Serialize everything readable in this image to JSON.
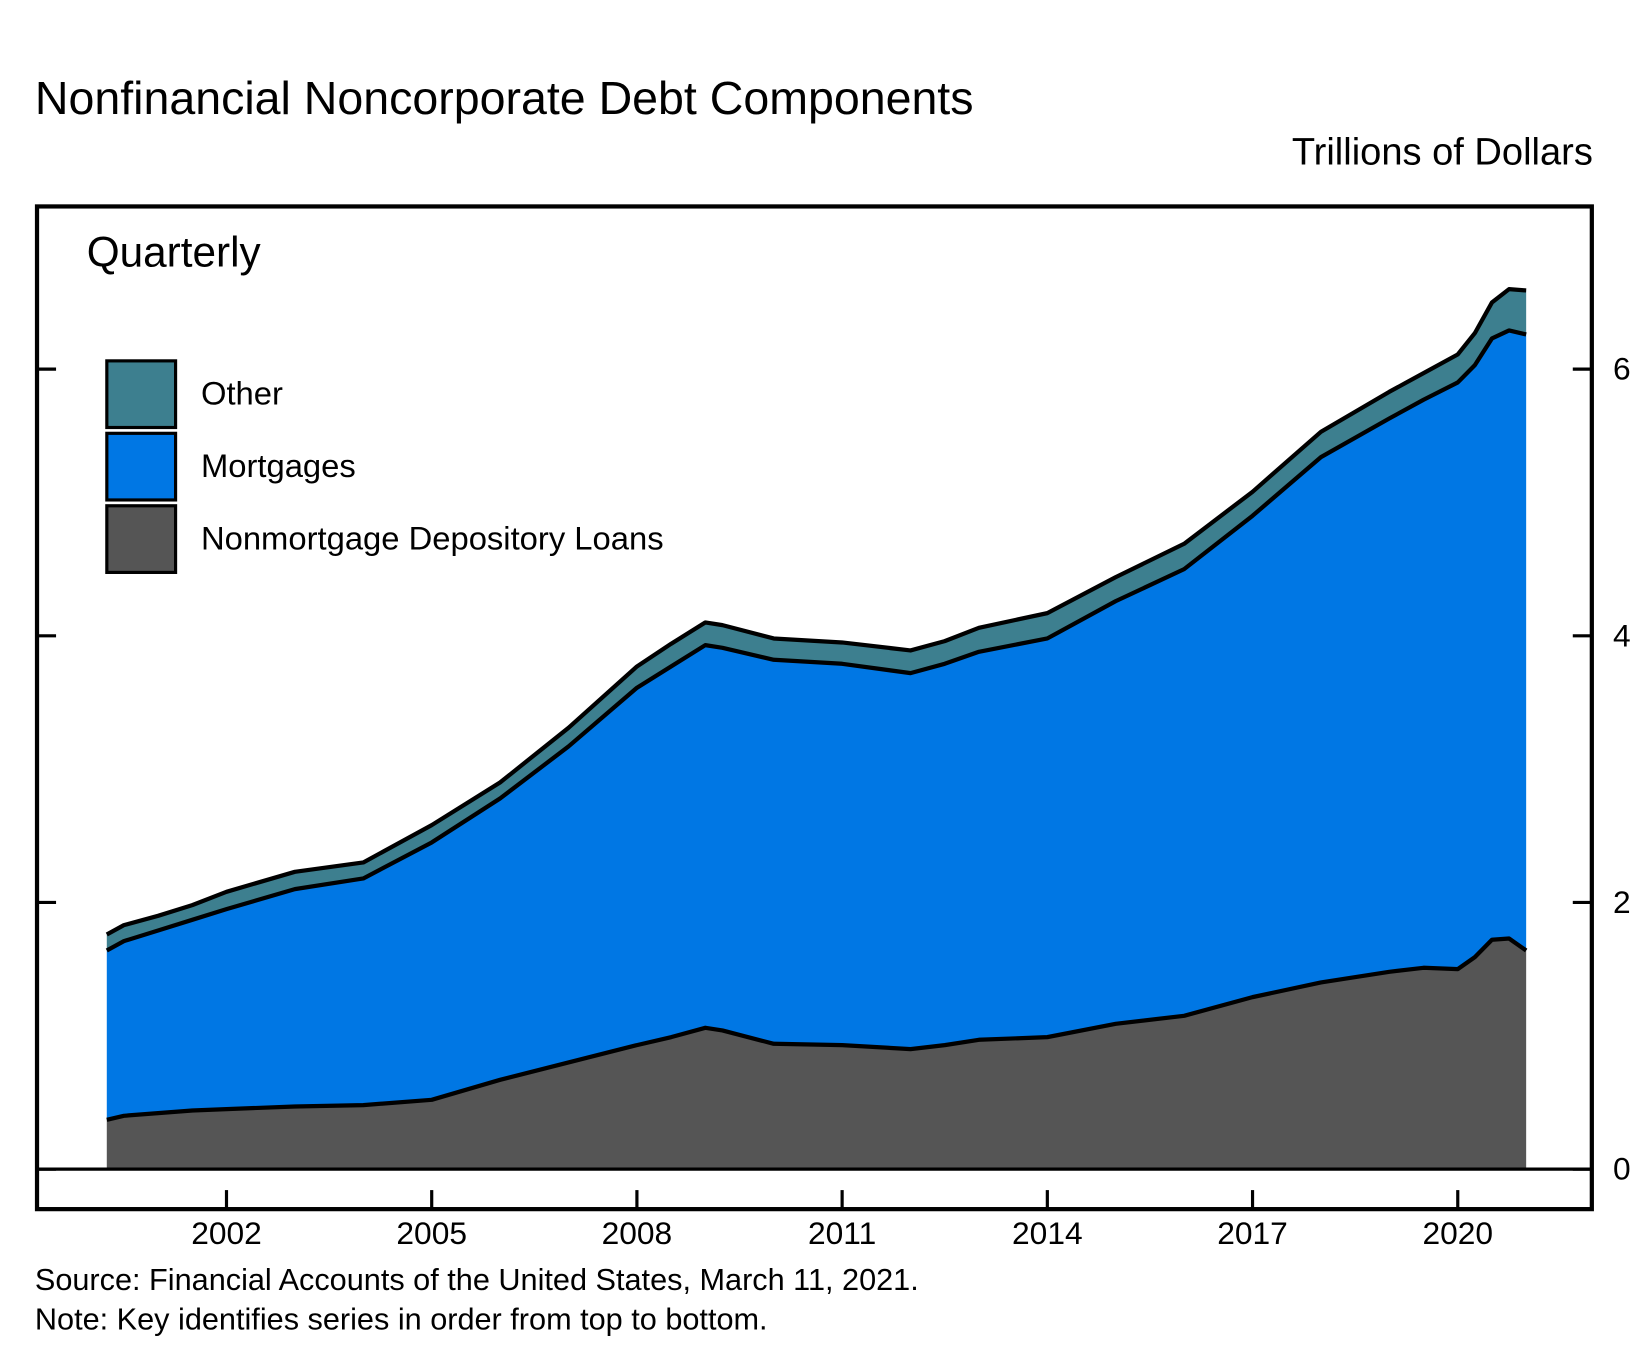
{
  "chart_data": {
    "type": "stacked-area",
    "title": "Nonfinancial Noncorporate Debt Components",
    "y_label": "Trillions of Dollars",
    "subtitle": "Quarterly",
    "source": "Source: Financial Accounts of the United States, March 11, 2021.",
    "note": "Note: Key identifies series in order from top to bottom.",
    "x": [
      2000.25,
      2000.5,
      2001,
      2001.5,
      2002,
      2003,
      2004,
      2005,
      2006,
      2007,
      2008,
      2008.5,
      2009,
      2009.25,
      2010,
      2011,
      2012,
      2012.5,
      2013,
      2014,
      2015,
      2016,
      2017,
      2018,
      2019,
      2019.5,
      2020,
      2020.25,
      2020.5,
      2020.75,
      2021
    ],
    "series": [
      {
        "name": "Nonmortgage Depository Loans",
        "color": "#555555",
        "values": [
          0.37,
          0.4,
          0.42,
          0.44,
          0.45,
          0.47,
          0.48,
          0.52,
          0.67,
          0.8,
          0.93,
          0.99,
          1.06,
          1.04,
          0.94,
          0.93,
          0.9,
          0.93,
          0.97,
          0.99,
          1.09,
          1.15,
          1.29,
          1.4,
          1.48,
          1.51,
          1.5,
          1.59,
          1.72,
          1.73,
          1.64
        ]
      },
      {
        "name": "Mortgages",
        "color": "#0077e4",
        "values": [
          1.27,
          1.31,
          1.37,
          1.43,
          1.5,
          1.63,
          1.7,
          1.93,
          2.11,
          2.37,
          2.68,
          2.78,
          2.87,
          2.87,
          2.88,
          2.86,
          2.82,
          2.86,
          2.91,
          2.99,
          3.17,
          3.35,
          3.61,
          3.94,
          4.15,
          4.26,
          4.4,
          4.44,
          4.51,
          4.56,
          4.62
        ]
      },
      {
        "name": "Other",
        "color": "#3d7f8f",
        "values": [
          0.12,
          0.12,
          0.11,
          0.11,
          0.13,
          0.13,
          0.12,
          0.13,
          0.12,
          0.14,
          0.16,
          0.17,
          0.17,
          0.17,
          0.16,
          0.16,
          0.17,
          0.17,
          0.18,
          0.19,
          0.18,
          0.19,
          0.18,
          0.19,
          0.2,
          0.2,
          0.21,
          0.24,
          0.27,
          0.31,
          0.33
        ]
      }
    ],
    "xlim": [
      1999.23,
      2021.96
    ],
    "xticks": [
      2002,
      2005,
      2008,
      2011,
      2014,
      2017,
      2020
    ],
    "ylim": [
      -0.3,
      7.22
    ],
    "yticks": [
      0,
      2,
      4,
      6
    ]
  }
}
